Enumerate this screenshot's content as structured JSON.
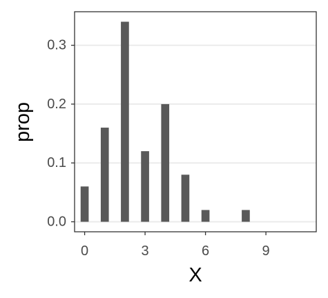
{
  "chart_data": {
    "type": "bar",
    "x": [
      0,
      1,
      2,
      3,
      4,
      5,
      6,
      8
    ],
    "values": [
      0.06,
      0.16,
      0.34,
      0.12,
      0.2,
      0.08,
      0.02,
      0.02
    ],
    "xlabel": "X",
    "ylabel": "prop",
    "xlim": [
      -0.5,
      11.5
    ],
    "ylim": [
      -0.017,
      0.357
    ],
    "xticks": [
      0,
      3,
      6,
      9
    ],
    "yticks": [
      0.0,
      0.1,
      0.2,
      0.3
    ],
    "xtick_labels": [
      "0",
      "3",
      "6",
      "9"
    ],
    "ytick_labels": [
      "0.0",
      "0.1",
      "0.2",
      "0.3"
    ],
    "grid": {
      "horizontal_major": true,
      "vertical": false
    },
    "colors": {
      "bar": "#595959",
      "grid": "#ebebeb",
      "panel_border": "#333333",
      "tick_text": "#4a4a4a",
      "axis_title": "#000000"
    }
  }
}
